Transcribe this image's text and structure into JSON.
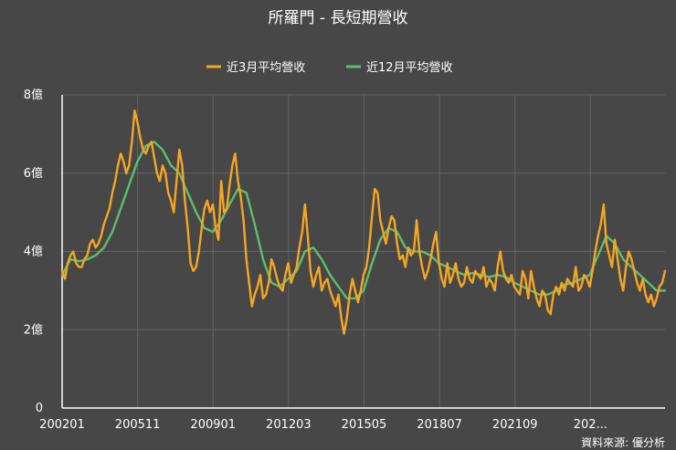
{
  "chart_data": {
    "type": "line",
    "title": "所羅門 - 長短期營收",
    "source": "資料來源: 優分析",
    "ylim": [
      0,
      8
    ],
    "y_ticks": [
      0,
      2,
      4,
      6,
      8
    ],
    "y_tick_labels": [
      "0",
      "2億",
      "4億",
      "6億",
      "8億"
    ],
    "x_tick_labels": [
      "200201",
      "200511",
      "200901",
      "201203",
      "201505",
      "201807",
      "202109",
      "202..."
    ],
    "grid": true,
    "legend_position": "top-center",
    "colors": {
      "short": "#f5a623",
      "long": "#5cbf6e",
      "grid": "#636363"
    },
    "series": [
      {
        "name": "近3月平均營收",
        "color": "#f5a623",
        "points": [
          [
            0,
            3.5
          ],
          [
            1,
            3.3
          ],
          [
            2,
            3.7
          ],
          [
            3,
            3.9
          ],
          [
            4,
            4.0
          ],
          [
            5,
            3.7
          ],
          [
            6,
            3.6
          ],
          [
            7,
            3.6
          ],
          [
            8,
            3.8
          ],
          [
            9,
            3.9
          ],
          [
            10,
            4.2
          ],
          [
            11,
            4.3
          ],
          [
            12,
            4.1
          ],
          [
            13,
            4.2
          ],
          [
            14,
            4.4
          ],
          [
            15,
            4.7
          ],
          [
            16,
            4.9
          ],
          [
            17,
            5.1
          ],
          [
            18,
            5.5
          ],
          [
            19,
            5.8
          ],
          [
            20,
            6.2
          ],
          [
            21,
            6.5
          ],
          [
            22,
            6.3
          ],
          [
            23,
            6.0
          ],
          [
            24,
            6.2
          ],
          [
            25,
            6.8
          ],
          [
            26,
            7.6
          ],
          [
            27,
            7.3
          ],
          [
            28,
            6.9
          ],
          [
            29,
            6.6
          ],
          [
            30,
            6.5
          ],
          [
            31,
            6.7
          ],
          [
            32,
            6.8
          ],
          [
            33,
            6.4
          ],
          [
            34,
            6.0
          ],
          [
            35,
            5.8
          ],
          [
            36,
            6.2
          ],
          [
            37,
            6.0
          ],
          [
            38,
            5.5
          ],
          [
            39,
            5.3
          ],
          [
            40,
            5.0
          ],
          [
            41,
            5.8
          ],
          [
            42,
            6.6
          ],
          [
            43,
            6.2
          ],
          [
            44,
            5.3
          ],
          [
            45,
            4.6
          ],
          [
            46,
            3.7
          ],
          [
            47,
            3.5
          ],
          [
            48,
            3.6
          ],
          [
            49,
            4.0
          ],
          [
            50,
            4.6
          ],
          [
            51,
            5.1
          ],
          [
            52,
            5.3
          ],
          [
            53,
            5.0
          ],
          [
            54,
            5.2
          ],
          [
            55,
            4.6
          ],
          [
            56,
            4.3
          ],
          [
            57,
            5.8
          ],
          [
            58,
            5.0
          ],
          [
            59,
            5.1
          ],
          [
            60,
            5.7
          ],
          [
            61,
            6.2
          ],
          [
            62,
            6.5
          ],
          [
            63,
            5.8
          ],
          [
            64,
            5.4
          ],
          [
            65,
            4.8
          ],
          [
            66,
            3.8
          ],
          [
            67,
            3.2
          ],
          [
            68,
            2.6
          ],
          [
            69,
            2.9
          ],
          [
            70,
            3.1
          ],
          [
            71,
            3.4
          ],
          [
            72,
            2.8
          ],
          [
            73,
            2.9
          ],
          [
            74,
            3.2
          ],
          [
            75,
            3.8
          ],
          [
            76,
            3.6
          ],
          [
            77,
            3.3
          ],
          [
            78,
            3.1
          ],
          [
            79,
            3.0
          ],
          [
            80,
            3.4
          ],
          [
            81,
            3.7
          ],
          [
            82,
            3.2
          ],
          [
            83,
            3.4
          ],
          [
            84,
            3.6
          ],
          [
            85,
            4.1
          ],
          [
            86,
            4.5
          ],
          [
            87,
            5.2
          ],
          [
            88,
            4.4
          ],
          [
            89,
            3.5
          ],
          [
            90,
            3.1
          ],
          [
            91,
            3.4
          ],
          [
            92,
            3.6
          ],
          [
            93,
            3.0
          ],
          [
            94,
            3.2
          ],
          [
            95,
            3.3
          ],
          [
            96,
            3.0
          ],
          [
            97,
            2.8
          ],
          [
            98,
            2.6
          ],
          [
            99,
            2.9
          ],
          [
            100,
            2.3
          ],
          [
            101,
            1.9
          ],
          [
            102,
            2.3
          ],
          [
            103,
            2.9
          ],
          [
            104,
            3.3
          ],
          [
            105,
            3.0
          ],
          [
            106,
            2.7
          ],
          [
            107,
            3.0
          ],
          [
            108,
            3.4
          ],
          [
            109,
            3.6
          ],
          [
            110,
            4.1
          ],
          [
            111,
            4.9
          ],
          [
            112,
            5.6
          ],
          [
            113,
            5.5
          ],
          [
            114,
            4.8
          ],
          [
            115,
            4.5
          ],
          [
            116,
            4.2
          ],
          [
            117,
            4.6
          ],
          [
            118,
            4.9
          ],
          [
            119,
            4.8
          ],
          [
            120,
            4.2
          ],
          [
            121,
            3.8
          ],
          [
            122,
            3.9
          ],
          [
            123,
            3.6
          ],
          [
            124,
            4.1
          ],
          [
            125,
            3.9
          ],
          [
            126,
            4.0
          ],
          [
            127,
            4.8
          ],
          [
            128,
            4.0
          ],
          [
            129,
            3.6
          ],
          [
            130,
            3.3
          ],
          [
            131,
            3.5
          ],
          [
            132,
            3.8
          ],
          [
            133,
            4.2
          ],
          [
            134,
            4.5
          ],
          [
            135,
            3.7
          ],
          [
            136,
            3.3
          ],
          [
            137,
            3.1
          ],
          [
            138,
            3.7
          ],
          [
            139,
            3.2
          ],
          [
            140,
            3.4
          ],
          [
            141,
            3.7
          ],
          [
            142,
            3.3
          ],
          [
            143,
            3.1
          ],
          [
            144,
            3.2
          ],
          [
            145,
            3.6
          ],
          [
            146,
            3.3
          ],
          [
            147,
            3.2
          ],
          [
            148,
            3.5
          ],
          [
            149,
            3.4
          ],
          [
            150,
            3.3
          ],
          [
            151,
            3.6
          ],
          [
            152,
            3.1
          ],
          [
            153,
            3.3
          ],
          [
            154,
            3.2
          ],
          [
            155,
            3.0
          ],
          [
            156,
            3.6
          ],
          [
            157,
            4.0
          ],
          [
            158,
            3.5
          ],
          [
            159,
            3.3
          ],
          [
            160,
            3.2
          ],
          [
            161,
            3.4
          ],
          [
            162,
            3.1
          ],
          [
            163,
            3.0
          ],
          [
            164,
            2.9
          ],
          [
            165,
            3.5
          ],
          [
            166,
            3.3
          ],
          [
            167,
            2.8
          ],
          [
            168,
            3.5
          ],
          [
            169,
            3.1
          ],
          [
            170,
            2.8
          ],
          [
            171,
            2.6
          ],
          [
            172,
            3.0
          ],
          [
            173,
            2.9
          ],
          [
            174,
            2.5
          ],
          [
            175,
            2.4
          ],
          [
            176,
            2.9
          ],
          [
            177,
            3.1
          ],
          [
            178,
            2.9
          ],
          [
            179,
            3.2
          ],
          [
            180,
            3.0
          ],
          [
            181,
            3.3
          ],
          [
            182,
            3.2
          ],
          [
            183,
            3.1
          ],
          [
            184,
            3.6
          ],
          [
            185,
            3.0
          ],
          [
            186,
            3.1
          ],
          [
            187,
            3.4
          ],
          [
            188,
            3.3
          ],
          [
            189,
            3.1
          ],
          [
            190,
            3.5
          ],
          [
            191,
            4.0
          ],
          [
            192,
            4.4
          ],
          [
            193,
            4.7
          ],
          [
            194,
            5.2
          ],
          [
            195,
            4.2
          ],
          [
            196,
            3.9
          ],
          [
            197,
            3.6
          ],
          [
            198,
            4.3
          ],
          [
            199,
            3.8
          ],
          [
            200,
            3.3
          ],
          [
            201,
            3.0
          ],
          [
            202,
            3.6
          ],
          [
            203,
            4.0
          ],
          [
            204,
            3.8
          ],
          [
            205,
            3.5
          ],
          [
            206,
            3.2
          ],
          [
            207,
            3.0
          ],
          [
            208,
            3.3
          ],
          [
            209,
            2.9
          ],
          [
            210,
            2.7
          ],
          [
            211,
            2.9
          ],
          [
            212,
            2.6
          ],
          [
            213,
            2.8
          ],
          [
            214,
            3.1
          ],
          [
            215,
            3.2
          ],
          [
            216,
            3.5
          ]
        ]
      },
      {
        "name": "近12月平均營收",
        "color": "#5cbf6e",
        "points": [
          [
            0,
            3.4
          ],
          [
            3,
            3.8
          ],
          [
            6,
            3.75
          ],
          [
            9,
            3.8
          ],
          [
            12,
            3.9
          ],
          [
            15,
            4.1
          ],
          [
            18,
            4.5
          ],
          [
            21,
            5.1
          ],
          [
            24,
            5.7
          ],
          [
            27,
            6.3
          ],
          [
            30,
            6.7
          ],
          [
            33,
            6.8
          ],
          [
            36,
            6.6
          ],
          [
            39,
            6.2
          ],
          [
            42,
            6.0
          ],
          [
            45,
            5.5
          ],
          [
            48,
            5.0
          ],
          [
            51,
            4.6
          ],
          [
            54,
            4.5
          ],
          [
            57,
            4.8
          ],
          [
            60,
            5.2
          ],
          [
            63,
            5.6
          ],
          [
            66,
            5.5
          ],
          [
            69,
            4.7
          ],
          [
            72,
            3.8
          ],
          [
            75,
            3.2
          ],
          [
            78,
            3.1
          ],
          [
            81,
            3.3
          ],
          [
            84,
            3.5
          ],
          [
            87,
            4.0
          ],
          [
            90,
            4.1
          ],
          [
            93,
            3.8
          ],
          [
            96,
            3.4
          ],
          [
            99,
            3.1
          ],
          [
            102,
            2.8
          ],
          [
            105,
            2.8
          ],
          [
            108,
            3.0
          ],
          [
            111,
            3.7
          ],
          [
            114,
            4.3
          ],
          [
            117,
            4.6
          ],
          [
            120,
            4.5
          ],
          [
            123,
            4.1
          ],
          [
            126,
            4.0
          ],
          [
            129,
            4.0
          ],
          [
            132,
            3.9
          ],
          [
            135,
            3.7
          ],
          [
            138,
            3.6
          ],
          [
            141,
            3.5
          ],
          [
            144,
            3.4
          ],
          [
            147,
            3.45
          ],
          [
            150,
            3.4
          ],
          [
            153,
            3.35
          ],
          [
            156,
            3.4
          ],
          [
            159,
            3.35
          ],
          [
            162,
            3.2
          ],
          [
            165,
            3.1
          ],
          [
            168,
            3.0
          ],
          [
            171,
            2.9
          ],
          [
            174,
            2.9
          ],
          [
            177,
            3.0
          ],
          [
            180,
            3.15
          ],
          [
            183,
            3.2
          ],
          [
            186,
            3.3
          ],
          [
            189,
            3.4
          ],
          [
            192,
            3.9
          ],
          [
            195,
            4.4
          ],
          [
            198,
            4.2
          ],
          [
            201,
            3.8
          ],
          [
            204,
            3.6
          ],
          [
            207,
            3.4
          ],
          [
            210,
            3.2
          ],
          [
            213,
            3.0
          ],
          [
            216,
            3.0
          ]
        ]
      }
    ]
  }
}
